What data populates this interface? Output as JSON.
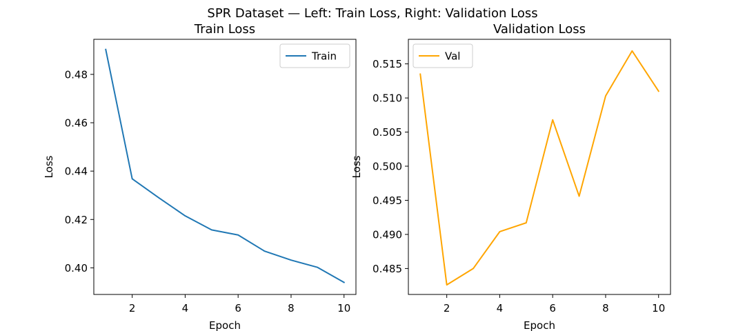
{
  "suptitle": "SPR Dataset — Left: Train Loss, Right: Validation Loss",
  "chart_data": [
    {
      "type": "line",
      "title": "Train Loss",
      "xlabel": "Epoch",
      "ylabel": "Loss",
      "x": [
        1,
        2,
        3,
        4,
        5,
        6,
        7,
        8,
        9,
        10
      ],
      "xlim": [
        0.55,
        10.45
      ],
      "ylim": [
        0.389,
        0.4945
      ],
      "xticks": [
        2,
        4,
        6,
        8,
        10
      ],
      "xtick_labels": [
        "2",
        "4",
        "6",
        "8",
        "10"
      ],
      "yticks": [
        0.4,
        0.42,
        0.44,
        0.46,
        0.48
      ],
      "ytick_labels": [
        "0.40",
        "0.42",
        "0.44",
        "0.46",
        "0.48"
      ],
      "grid": false,
      "legend_position": "upper right",
      "series": [
        {
          "name": "Train",
          "color": "#1f77b4",
          "values": [
            0.4903,
            0.4368,
            0.429,
            0.4215,
            0.4157,
            0.4136,
            0.4069,
            0.4032,
            0.4002,
            0.394
          ]
        }
      ]
    },
    {
      "type": "line",
      "title": "Validation Loss",
      "xlabel": "Epoch",
      "ylabel": "Loss",
      "x": [
        1,
        2,
        3,
        4,
        5,
        6,
        7,
        8,
        9,
        10
      ],
      "xlim": [
        0.55,
        10.45
      ],
      "ylim": [
        0.4812,
        0.5186
      ],
      "xticks": [
        2,
        4,
        6,
        8,
        10
      ],
      "xtick_labels": [
        "2",
        "4",
        "6",
        "8",
        "10"
      ],
      "yticks": [
        0.485,
        0.49,
        0.495,
        0.5,
        0.505,
        0.51,
        0.515
      ],
      "ytick_labels": [
        "0.485",
        "0.490",
        "0.495",
        "0.500",
        "0.505",
        "0.510",
        "0.515"
      ],
      "grid": false,
      "legend_position": "upper left",
      "series": [
        {
          "name": "Val",
          "color": "#ffa500",
          "values": [
            0.5135,
            0.4826,
            0.485,
            0.4904,
            0.4917,
            0.5068,
            0.4956,
            0.5103,
            0.5169,
            0.511
          ]
        }
      ]
    }
  ]
}
